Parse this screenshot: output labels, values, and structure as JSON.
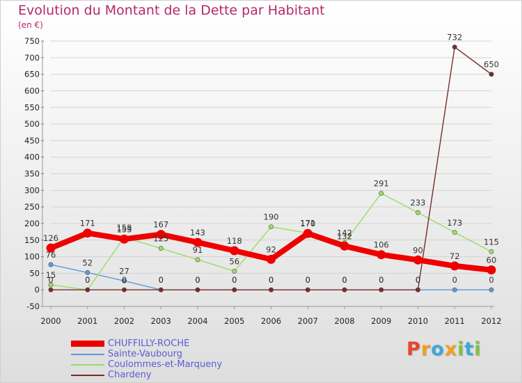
{
  "title": "Evolution du Montant de la Dette par Habitant",
  "unit": "(en €)",
  "logo": {
    "text": "Proxiti",
    "colors": [
      "#e8442f",
      "#f0a01c",
      "#3fa7dc",
      "#f0a01c",
      "#7fc241",
      "#3fa7dc",
      "#7fc241"
    ]
  },
  "chart_data": {
    "type": "line",
    "title": "Evolution du Montant de la Dette par Habitant",
    "ylabel": "(en €)",
    "xlabel": "",
    "ylim": [
      -50,
      750
    ],
    "yticks": [
      -50,
      0,
      50,
      100,
      150,
      200,
      250,
      300,
      350,
      400,
      450,
      500,
      550,
      600,
      650,
      700,
      750
    ],
    "ytick_labels": [
      "-50",
      "0",
      "50",
      "100",
      "150",
      "200",
      "250",
      "300",
      "350",
      "400",
      "450",
      "500",
      "550",
      "600",
      "650",
      "700",
      "750"
    ],
    "categories": [
      "2000",
      "2001",
      "2002",
      "2003",
      "2004",
      "2005",
      "2006",
      "2007",
      "2008",
      "2009",
      "2010",
      "2011",
      "2012"
    ],
    "series": [
      {
        "name": "CHUFFILLY-ROCHE",
        "color": "#ee0000",
        "emphasis": true,
        "values": [
          126,
          171,
          153,
          167,
          143,
          118,
          92,
          170,
          132,
          106,
          90,
          72,
          60
        ],
        "labels": [
          "126",
          "171",
          "153",
          "167",
          "143",
          "118",
          "92",
          "170",
          "132",
          "106",
          "90",
          "72",
          "60"
        ]
      },
      {
        "name": "Sainte-Vaubourg",
        "color": "#5b9bd5",
        "emphasis": false,
        "values": [
          76,
          52,
          27,
          0,
          0,
          0,
          0,
          0,
          0,
          0,
          0,
          0,
          0
        ],
        "labels": [
          "76",
          "52",
          "27",
          "0",
          "0",
          "0",
          "0",
          "0",
          "0",
          "0",
          "0",
          "0",
          "0"
        ]
      },
      {
        "name": "Coulommes-et-Marqueny",
        "color": "#99dd66",
        "emphasis": false,
        "values": [
          15,
          0,
          158,
          125,
          91,
          56,
          190,
          171,
          142,
          291,
          233,
          173,
          115
        ],
        "labels": [
          "15",
          "0",
          "158",
          "125",
          "91",
          "56",
          "190",
          "171",
          "142",
          "291",
          "233",
          "173",
          "115"
        ]
      },
      {
        "name": "Chardeny",
        "color": "#7a2a2a",
        "emphasis": false,
        "values": [
          0,
          0,
          0,
          0,
          0,
          0,
          0,
          0,
          0,
          0,
          0,
          732,
          650
        ],
        "labels": [
          "0",
          "0",
          "0",
          "0",
          "0",
          "0",
          "0",
          "0",
          "0",
          "0",
          "0",
          "732",
          "650"
        ]
      }
    ]
  }
}
